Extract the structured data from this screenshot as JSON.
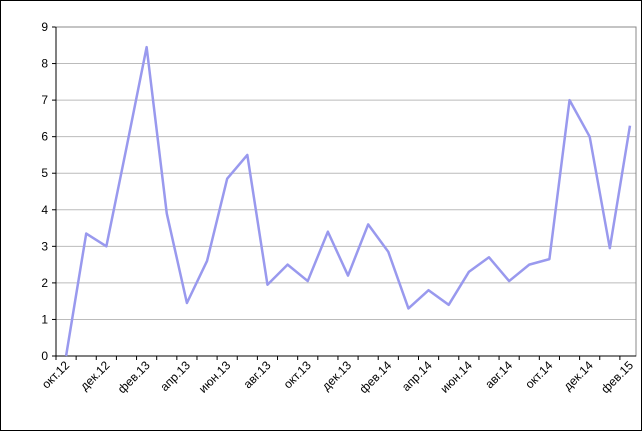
{
  "chart_data": {
    "type": "line",
    "categories": [
      "окт.12",
      null,
      "дек.12",
      null,
      "фев.13",
      null,
      "апр.13",
      null,
      "июн.13",
      null,
      "авг.13",
      null,
      "окт.13",
      null,
      "дек.13",
      null,
      "фев.14",
      null,
      "апр.14",
      null,
      "июн.14",
      null,
      "авг.14",
      null,
      "окт.14",
      null,
      "дек.14",
      null,
      "фев.15"
    ],
    "series": [
      {
        "name": null,
        "color": "#9999ee",
        "values": [
          0,
          3.35,
          3.0,
          5.7,
          8.45,
          3.9,
          1.45,
          2.6,
          4.85,
          5.5,
          1.95,
          2.5,
          2.05,
          3.4,
          2.2,
          3.6,
          2.85,
          1.3,
          1.8,
          1.4,
          2.3,
          2.7,
          2.05,
          2.5,
          2.65,
          7.0,
          6.0,
          2.95,
          6.3
        ]
      }
    ],
    "ylim": [
      0,
      9
    ],
    "yticks": [
      0,
      1,
      2,
      3,
      4,
      5,
      6,
      7,
      8,
      9
    ],
    "grid": true
  }
}
